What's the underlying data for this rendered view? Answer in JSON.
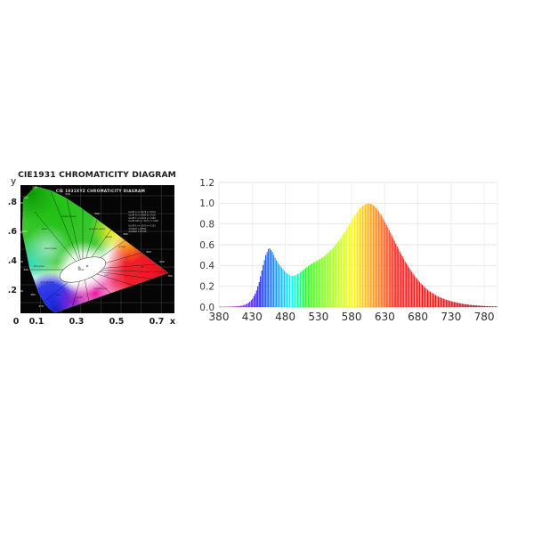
{
  "colors": {
    "page_background": "#ffffff",
    "cie_background": "#050505",
    "cie_grid": "#464646",
    "spd_grid": "#e9e9e9",
    "spd_baseline": "#d5d5d5",
    "label_dark": "#1b1b1b"
  },
  "chart_data": [
    {
      "type": "area",
      "subtype": "cie-1931-chromaticity-diagram",
      "title": "CIE1931 CHROMATICITY DIAGRAM",
      "inner_title": "CIE 1931XYZ CHROMATICITY DIAGRAM",
      "xlabel": "x",
      "ylabel": "y",
      "xlim": [
        0,
        0.78
      ],
      "ylim": [
        0,
        0.84
      ],
      "x_ticks": [
        "0",
        "0.1",
        "0.3",
        "0.5",
        "0.7"
      ],
      "y_ticks": [
        ".8",
        ".6",
        ".4",
        ".2"
      ],
      "grid": true,
      "spectral_locus": [
        [
          380,
          0.1741,
          0.005
        ],
        [
          450,
          0.1566,
          0.0177
        ],
        [
          460,
          0.144,
          0.0297
        ],
        [
          470,
          0.1241,
          0.0578
        ],
        [
          480,
          0.0913,
          0.1327
        ],
        [
          490,
          0.0454,
          0.295
        ],
        [
          500,
          0.0082,
          0.5384
        ],
        [
          510,
          0.0139,
          0.7502
        ],
        [
          520,
          0.0743,
          0.8338
        ],
        [
          530,
          0.1547,
          0.8059
        ],
        [
          540,
          0.2296,
          0.7543
        ],
        [
          550,
          0.3016,
          0.6923
        ],
        [
          560,
          0.3731,
          0.6245
        ],
        [
          570,
          0.4441,
          0.5547
        ],
        [
          580,
          0.5125,
          0.4866
        ],
        [
          590,
          0.5752,
          0.4242
        ],
        [
          600,
          0.627,
          0.3725
        ],
        [
          620,
          0.6915,
          0.3083
        ],
        [
          700,
          0.7347,
          0.2653
        ]
      ],
      "white_point": [
        0.333,
        0.333
      ],
      "locus_labels": [
        "470",
        "480",
        "490",
        "500",
        "510",
        "520",
        "540",
        "560",
        "580",
        "600",
        "620",
        "700"
      ],
      "region_labels": [
        "green",
        "yellowish green",
        "greenish yellow",
        "yellow",
        "orange",
        "red",
        "pink",
        "purplish pink",
        "purple",
        "blue",
        "greenish blue",
        "blue green",
        "bluish green",
        "white"
      ],
      "legend_lines": [
        "ILLUM A  x=.4476 y=.4074",
        "ILLUM B  x=.3484 y=.3516",
        "ILLUM C  x=.3101 y=.3162",
        "ILLUM D65 x=.3127 y=.3290",
        "ILLUM E  x=.3333 y=.3333",
        "SOURCE A 2856K",
        "SOURCE C 6774K"
      ]
    },
    {
      "type": "bar",
      "subtype": "spectral-power-distribution",
      "title": "",
      "xlabel": "",
      "ylabel": "",
      "xlim": [
        380,
        800
      ],
      "ylim": [
        0,
        1.2
      ],
      "grid": true,
      "x_tick_values": [
        380,
        430,
        480,
        530,
        580,
        630,
        680,
        730,
        780
      ],
      "x_ticks": [
        "380",
        "430",
        "480",
        "530",
        "580",
        "630",
        "680",
        "730",
        "780"
      ],
      "y_tick_values": [
        0.0,
        0.2,
        0.4,
        0.6,
        0.8,
        1.0,
        1.2
      ],
      "y_ticks": [
        "0.0",
        "0.2",
        "0.4",
        "0.6",
        "0.8",
        "1.0",
        "1.2"
      ],
      "bar_coloring": "per-wavelength spectral color, dark red falloff beyond 700nm",
      "notable_points": {
        "blue_peak": {
          "wavelength": 455,
          "value": 0.575
        },
        "dip": {
          "wavelength": 490,
          "value": 0.3
        },
        "main_peak": {
          "wavelength": 605,
          "value": 1.0
        }
      },
      "x": [
        380,
        385,
        390,
        395,
        400,
        405,
        410,
        415,
        420,
        425,
        430,
        435,
        440,
        445,
        450,
        455,
        460,
        465,
        470,
        475,
        480,
        485,
        490,
        495,
        500,
        505,
        510,
        515,
        520,
        525,
        530,
        535,
        540,
        545,
        550,
        555,
        560,
        565,
        570,
        575,
        580,
        585,
        590,
        595,
        600,
        605,
        610,
        615,
        620,
        625,
        630,
        635,
        640,
        645,
        650,
        655,
        660,
        665,
        670,
        675,
        680,
        685,
        690,
        695,
        700,
        705,
        710,
        715,
        720,
        725,
        730,
        735,
        740,
        745,
        750,
        755,
        760,
        765,
        770,
        775,
        780,
        785,
        790,
        795
      ],
      "values": [
        0.002,
        0.002,
        0.003,
        0.004,
        0.005,
        0.007,
        0.01,
        0.015,
        0.025,
        0.045,
        0.08,
        0.14,
        0.24,
        0.38,
        0.5,
        0.575,
        0.53,
        0.46,
        0.41,
        0.37,
        0.335,
        0.31,
        0.3,
        0.305,
        0.325,
        0.35,
        0.375,
        0.4,
        0.42,
        0.44,
        0.455,
        0.475,
        0.5,
        0.53,
        0.56,
        0.6,
        0.64,
        0.685,
        0.73,
        0.785,
        0.84,
        0.89,
        0.935,
        0.97,
        0.99,
        1.0,
        0.99,
        0.965,
        0.925,
        0.875,
        0.815,
        0.755,
        0.69,
        0.625,
        0.56,
        0.5,
        0.44,
        0.39,
        0.34,
        0.295,
        0.255,
        0.22,
        0.19,
        0.16,
        0.14,
        0.12,
        0.1,
        0.088,
        0.075,
        0.065,
        0.055,
        0.047,
        0.04,
        0.034,
        0.028,
        0.024,
        0.02,
        0.017,
        0.014,
        0.012,
        0.01,
        0.008,
        0.007,
        0.006
      ]
    }
  ]
}
